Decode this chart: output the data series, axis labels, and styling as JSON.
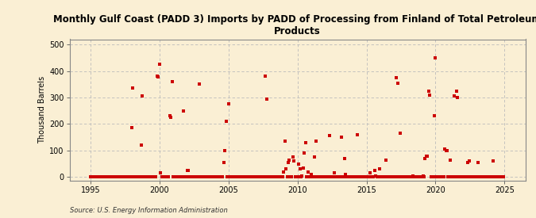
{
  "title": "Monthly Gulf Coast (PADD 3) Imports by PADD of Processing from Finland of Total Petroleum\nProducts",
  "ylabel": "Thousand Barrels",
  "source": "Source: U.S. Energy Information Administration",
  "background_color": "#faefd4",
  "plot_bg_color": "#faefd4",
  "marker_color": "#cc0000",
  "marker": "s",
  "marker_size": 3.2,
  "xlim": [
    1993.5,
    2026.5
  ],
  "ylim": [
    -15,
    520
  ],
  "yticks": [
    0,
    100,
    200,
    300,
    400,
    500
  ],
  "xticks": [
    1995,
    2000,
    2005,
    2010,
    2015,
    2020,
    2025
  ],
  "grid_color": "#bbbbbb",
  "data": [
    [
      1995.0,
      0
    ],
    [
      1995.083,
      0
    ],
    [
      1995.167,
      0
    ],
    [
      1995.25,
      0
    ],
    [
      1995.333,
      0
    ],
    [
      1995.417,
      0
    ],
    [
      1995.5,
      0
    ],
    [
      1995.583,
      0
    ],
    [
      1995.667,
      0
    ],
    [
      1995.75,
      0
    ],
    [
      1995.833,
      0
    ],
    [
      1995.917,
      0
    ],
    [
      1996.0,
      0
    ],
    [
      1996.083,
      0
    ],
    [
      1996.167,
      0
    ],
    [
      1996.25,
      0
    ],
    [
      1996.333,
      0
    ],
    [
      1996.417,
      0
    ],
    [
      1996.5,
      0
    ],
    [
      1996.583,
      0
    ],
    [
      1996.667,
      0
    ],
    [
      1996.75,
      0
    ],
    [
      1996.833,
      0
    ],
    [
      1996.917,
      0
    ],
    [
      1997.0,
      0
    ],
    [
      1997.083,
      0
    ],
    [
      1997.167,
      0
    ],
    [
      1997.25,
      0
    ],
    [
      1997.333,
      0
    ],
    [
      1997.417,
      0
    ],
    [
      1997.5,
      0
    ],
    [
      1997.583,
      0
    ],
    [
      1997.667,
      0
    ],
    [
      1997.75,
      0
    ],
    [
      1997.833,
      0
    ],
    [
      1997.917,
      0
    ],
    [
      1998.0,
      185
    ],
    [
      1998.083,
      335
    ],
    [
      1998.167,
      0
    ],
    [
      1998.25,
      0
    ],
    [
      1998.333,
      0
    ],
    [
      1998.417,
      0
    ],
    [
      1998.5,
      0
    ],
    [
      1998.583,
      0
    ],
    [
      1998.667,
      120
    ],
    [
      1998.75,
      305
    ],
    [
      1998.833,
      0
    ],
    [
      1998.917,
      0
    ],
    [
      1999.0,
      0
    ],
    [
      1999.083,
      0
    ],
    [
      1999.167,
      0
    ],
    [
      1999.25,
      0
    ],
    [
      1999.333,
      0
    ],
    [
      1999.417,
      0
    ],
    [
      1999.5,
      0
    ],
    [
      1999.583,
      0
    ],
    [
      1999.667,
      0
    ],
    [
      1999.75,
      0
    ],
    [
      1999.833,
      380
    ],
    [
      1999.917,
      378
    ],
    [
      2000.0,
      425
    ],
    [
      2000.083,
      15
    ],
    [
      2000.167,
      0
    ],
    [
      2000.25,
      0
    ],
    [
      2000.333,
      0
    ],
    [
      2000.417,
      0
    ],
    [
      2000.5,
      0
    ],
    [
      2000.583,
      0
    ],
    [
      2000.667,
      0
    ],
    [
      2000.75,
      230
    ],
    [
      2000.833,
      225
    ],
    [
      2000.917,
      360
    ],
    [
      2001.0,
      0
    ],
    [
      2001.083,
      0
    ],
    [
      2001.167,
      0
    ],
    [
      2001.25,
      0
    ],
    [
      2001.333,
      0
    ],
    [
      2001.417,
      0
    ],
    [
      2001.5,
      0
    ],
    [
      2001.583,
      0
    ],
    [
      2001.667,
      0
    ],
    [
      2001.75,
      250
    ],
    [
      2001.833,
      0
    ],
    [
      2001.917,
      0
    ],
    [
      2002.0,
      25
    ],
    [
      2002.083,
      25
    ],
    [
      2002.167,
      0
    ],
    [
      2002.25,
      0
    ],
    [
      2002.333,
      0
    ],
    [
      2002.417,
      0
    ],
    [
      2002.5,
      0
    ],
    [
      2002.583,
      0
    ],
    [
      2002.667,
      0
    ],
    [
      2002.75,
      0
    ],
    [
      2002.833,
      0
    ],
    [
      2002.917,
      350
    ],
    [
      2003.0,
      0
    ],
    [
      2003.083,
      0
    ],
    [
      2003.167,
      0
    ],
    [
      2003.25,
      0
    ],
    [
      2003.333,
      0
    ],
    [
      2003.417,
      0
    ],
    [
      2003.5,
      0
    ],
    [
      2003.583,
      0
    ],
    [
      2003.667,
      0
    ],
    [
      2003.75,
      0
    ],
    [
      2003.833,
      0
    ],
    [
      2003.917,
      0
    ],
    [
      2004.0,
      0
    ],
    [
      2004.083,
      0
    ],
    [
      2004.167,
      0
    ],
    [
      2004.25,
      0
    ],
    [
      2004.333,
      0
    ],
    [
      2004.417,
      0
    ],
    [
      2004.5,
      0
    ],
    [
      2004.583,
      0
    ],
    [
      2004.667,
      55
    ],
    [
      2004.75,
      100
    ],
    [
      2004.833,
      210
    ],
    [
      2004.917,
      0
    ],
    [
      2005.0,
      275
    ],
    [
      2005.083,
      0
    ],
    [
      2005.167,
      0
    ],
    [
      2005.25,
      0
    ],
    [
      2005.333,
      0
    ],
    [
      2005.417,
      0
    ],
    [
      2005.5,
      0
    ],
    [
      2005.583,
      0
    ],
    [
      2005.667,
      0
    ],
    [
      2005.75,
      0
    ],
    [
      2005.833,
      0
    ],
    [
      2005.917,
      0
    ],
    [
      2006.0,
      0
    ],
    [
      2006.083,
      0
    ],
    [
      2006.167,
      0
    ],
    [
      2006.25,
      0
    ],
    [
      2006.333,
      0
    ],
    [
      2006.417,
      0
    ],
    [
      2006.5,
      0
    ],
    [
      2006.583,
      0
    ],
    [
      2006.667,
      0
    ],
    [
      2006.75,
      0
    ],
    [
      2006.833,
      0
    ],
    [
      2006.917,
      0
    ],
    [
      2007.0,
      0
    ],
    [
      2007.083,
      0
    ],
    [
      2007.167,
      0
    ],
    [
      2007.25,
      0
    ],
    [
      2007.333,
      0
    ],
    [
      2007.417,
      0
    ],
    [
      2007.5,
      0
    ],
    [
      2007.583,
      0
    ],
    [
      2007.667,
      380
    ],
    [
      2007.75,
      295
    ],
    [
      2007.833,
      0
    ],
    [
      2007.917,
      0
    ],
    [
      2008.0,
      0
    ],
    [
      2008.083,
      0
    ],
    [
      2008.167,
      0
    ],
    [
      2008.25,
      0
    ],
    [
      2008.333,
      0
    ],
    [
      2008.417,
      0
    ],
    [
      2008.5,
      0
    ],
    [
      2008.583,
      0
    ],
    [
      2008.667,
      0
    ],
    [
      2008.75,
      0
    ],
    [
      2008.833,
      0
    ],
    [
      2008.917,
      0
    ],
    [
      2009.0,
      20
    ],
    [
      2009.083,
      135
    ],
    [
      2009.167,
      30
    ],
    [
      2009.25,
      0
    ],
    [
      2009.333,
      55
    ],
    [
      2009.417,
      65
    ],
    [
      2009.5,
      0
    ],
    [
      2009.583,
      0
    ],
    [
      2009.667,
      75
    ],
    [
      2009.75,
      60
    ],
    [
      2009.833,
      0
    ],
    [
      2009.917,
      0
    ],
    [
      2010.0,
      0
    ],
    [
      2010.083,
      50
    ],
    [
      2010.167,
      30
    ],
    [
      2010.25,
      0
    ],
    [
      2010.333,
      5
    ],
    [
      2010.417,
      35
    ],
    [
      2010.5,
      90
    ],
    [
      2010.583,
      130
    ],
    [
      2010.667,
      0
    ],
    [
      2010.75,
      20
    ],
    [
      2010.833,
      0
    ],
    [
      2010.917,
      0
    ],
    [
      2011.0,
      10
    ],
    [
      2011.083,
      0
    ],
    [
      2011.167,
      0
    ],
    [
      2011.25,
      75
    ],
    [
      2011.333,
      135
    ],
    [
      2011.417,
      0
    ],
    [
      2011.5,
      0
    ],
    [
      2011.583,
      0
    ],
    [
      2011.667,
      0
    ],
    [
      2011.75,
      0
    ],
    [
      2011.833,
      0
    ],
    [
      2011.917,
      0
    ],
    [
      2012.0,
      0
    ],
    [
      2012.083,
      0
    ],
    [
      2012.167,
      0
    ],
    [
      2012.25,
      0
    ],
    [
      2012.333,
      155
    ],
    [
      2012.417,
      0
    ],
    [
      2012.5,
      0
    ],
    [
      2012.583,
      0
    ],
    [
      2012.667,
      15
    ],
    [
      2012.75,
      0
    ],
    [
      2012.833,
      0
    ],
    [
      2012.917,
      0
    ],
    [
      2013.0,
      0
    ],
    [
      2013.083,
      0
    ],
    [
      2013.167,
      150
    ],
    [
      2013.25,
      0
    ],
    [
      2013.333,
      0
    ],
    [
      2013.417,
      70
    ],
    [
      2013.5,
      10
    ],
    [
      2013.583,
      0
    ],
    [
      2013.667,
      0
    ],
    [
      2013.75,
      0
    ],
    [
      2013.833,
      0
    ],
    [
      2013.917,
      0
    ],
    [
      2014.0,
      0
    ],
    [
      2014.083,
      0
    ],
    [
      2014.167,
      0
    ],
    [
      2014.25,
      0
    ],
    [
      2014.333,
      160
    ],
    [
      2014.417,
      0
    ],
    [
      2014.5,
      0
    ],
    [
      2014.583,
      0
    ],
    [
      2014.667,
      0
    ],
    [
      2014.75,
      0
    ],
    [
      2014.833,
      0
    ],
    [
      2014.917,
      0
    ],
    [
      2015.0,
      0
    ],
    [
      2015.083,
      0
    ],
    [
      2015.167,
      0
    ],
    [
      2015.25,
      15
    ],
    [
      2015.333,
      0
    ],
    [
      2015.417,
      0
    ],
    [
      2015.5,
      0
    ],
    [
      2015.583,
      25
    ],
    [
      2015.667,
      5
    ],
    [
      2015.75,
      0
    ],
    [
      2015.833,
      0
    ],
    [
      2015.917,
      30
    ],
    [
      2016.0,
      0
    ],
    [
      2016.083,
      0
    ],
    [
      2016.167,
      0
    ],
    [
      2016.25,
      0
    ],
    [
      2016.333,
      0
    ],
    [
      2016.417,
      65
    ],
    [
      2016.5,
      0
    ],
    [
      2016.583,
      0
    ],
    [
      2016.667,
      0
    ],
    [
      2016.75,
      0
    ],
    [
      2016.833,
      0
    ],
    [
      2016.917,
      0
    ],
    [
      2017.0,
      0
    ],
    [
      2017.083,
      0
    ],
    [
      2017.167,
      375
    ],
    [
      2017.25,
      355
    ],
    [
      2017.333,
      0
    ],
    [
      2017.417,
      165
    ],
    [
      2017.5,
      0
    ],
    [
      2017.583,
      0
    ],
    [
      2017.667,
      0
    ],
    [
      2017.75,
      0
    ],
    [
      2017.833,
      0
    ],
    [
      2017.917,
      0
    ],
    [
      2018.0,
      0
    ],
    [
      2018.083,
      0
    ],
    [
      2018.167,
      0
    ],
    [
      2018.25,
      0
    ],
    [
      2018.333,
      5
    ],
    [
      2018.417,
      0
    ],
    [
      2018.5,
      0
    ],
    [
      2018.583,
      0
    ],
    [
      2018.667,
      0
    ],
    [
      2018.75,
      0
    ],
    [
      2018.833,
      0
    ],
    [
      2018.917,
      0
    ],
    [
      2019.0,
      0
    ],
    [
      2019.083,
      5
    ],
    [
      2019.167,
      0
    ],
    [
      2019.25,
      70
    ],
    [
      2019.333,
      80
    ],
    [
      2019.417,
      80
    ],
    [
      2019.5,
      325
    ],
    [
      2019.583,
      310
    ],
    [
      2019.667,
      0
    ],
    [
      2019.75,
      0
    ],
    [
      2019.833,
      0
    ],
    [
      2019.917,
      230
    ],
    [
      2020.0,
      450
    ],
    [
      2020.083,
      0
    ],
    [
      2020.167,
      0
    ],
    [
      2020.25,
      0
    ],
    [
      2020.333,
      0
    ],
    [
      2020.417,
      0
    ],
    [
      2020.5,
      0
    ],
    [
      2020.583,
      0
    ],
    [
      2020.667,
      105
    ],
    [
      2020.75,
      100
    ],
    [
      2020.833,
      100
    ],
    [
      2020.917,
      0
    ],
    [
      2021.0,
      0
    ],
    [
      2021.083,
      65
    ],
    [
      2021.167,
      0
    ],
    [
      2021.25,
      0
    ],
    [
      2021.333,
      305
    ],
    [
      2021.417,
      0
    ],
    [
      2021.5,
      325
    ],
    [
      2021.583,
      300
    ],
    [
      2021.667,
      0
    ],
    [
      2021.75,
      0
    ],
    [
      2021.833,
      0
    ],
    [
      2021.917,
      0
    ],
    [
      2022.0,
      0
    ],
    [
      2022.083,
      0
    ],
    [
      2022.167,
      0
    ],
    [
      2022.25,
      0
    ],
    [
      2022.333,
      55
    ],
    [
      2022.417,
      60
    ],
    [
      2022.5,
      0
    ],
    [
      2022.583,
      0
    ],
    [
      2022.667,
      0
    ],
    [
      2022.75,
      0
    ],
    [
      2022.833,
      0
    ],
    [
      2022.917,
      0
    ],
    [
      2023.0,
      0
    ],
    [
      2023.083,
      55
    ],
    [
      2023.167,
      0
    ],
    [
      2023.25,
      0
    ],
    [
      2023.333,
      0
    ],
    [
      2023.417,
      0
    ],
    [
      2023.5,
      0
    ],
    [
      2023.583,
      0
    ],
    [
      2023.667,
      0
    ],
    [
      2023.75,
      0
    ],
    [
      2023.833,
      0
    ],
    [
      2023.917,
      0
    ],
    [
      2024.0,
      0
    ],
    [
      2024.083,
      0
    ],
    [
      2024.167,
      60
    ],
    [
      2024.25,
      0
    ],
    [
      2024.333,
      0
    ],
    [
      2024.417,
      0
    ],
    [
      2024.5,
      0
    ],
    [
      2024.583,
      0
    ],
    [
      2024.667,
      0
    ],
    [
      2024.75,
      0
    ],
    [
      2024.833,
      0
    ],
    [
      2024.917,
      0
    ]
  ]
}
